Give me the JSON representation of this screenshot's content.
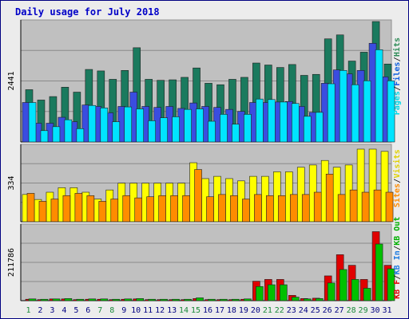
{
  "title": "Daily usage for July 2018",
  "colors": {
    "hits": "#1a7a5e",
    "files": "#3a4de0",
    "pages": "#00e4ff",
    "visits": "#ffff00",
    "sites": "#ff8c00",
    "kb_in": "#1e7ce0",
    "kb_f": "#e00000",
    "kb_out": "#00c000",
    "panel_bg": "#c0c0c0",
    "axis": "#000000"
  },
  "chart_data": [
    {
      "type": "bar",
      "title": "Daily usage for July 2018",
      "categories": [
        "1",
        "2",
        "3",
        "4",
        "5",
        "6",
        "7",
        "8",
        "9",
        "10",
        "11",
        "12",
        "13",
        "14",
        "15",
        "16",
        "17",
        "18",
        "19",
        "20",
        "21",
        "22",
        "23",
        "24",
        "25",
        "26",
        "27",
        "28",
        "29",
        "30",
        "31"
      ],
      "weekend_days": [
        "1",
        "7",
        "8",
        "14",
        "15",
        "21",
        "22",
        "28",
        "29"
      ],
      "ylabel": "2441",
      "ylim": [
        0,
        2441
      ],
      "legend": [
        "Pages",
        "Files",
        "Hits"
      ],
      "legend_separator": "/",
      "series": [
        {
          "name": "Hits",
          "values": [
            1060,
            850,
            920,
            1110,
            1010,
            1470,
            1440,
            1270,
            1450,
            1910,
            1270,
            1250,
            1260,
            1310,
            1500,
            1190,
            1160,
            1270,
            1310,
            1600,
            1560,
            1510,
            1570,
            1350,
            1370,
            2090,
            2170,
            1640,
            1820,
            2441,
            1580
          ]
        },
        {
          "name": "Files",
          "values": [
            800,
            380,
            380,
            500,
            410,
            750,
            720,
            590,
            720,
            1010,
            720,
            700,
            720,
            680,
            790,
            720,
            700,
            660,
            620,
            800,
            800,
            810,
            820,
            720,
            600,
            1190,
            1460,
            1380,
            1450,
            2000,
            1320
          ]
        },
        {
          "name": "Pages",
          "values": [
            800,
            230,
            310,
            450,
            270,
            740,
            690,
            410,
            710,
            670,
            430,
            490,
            510,
            660,
            670,
            420,
            560,
            360,
            560,
            870,
            860,
            810,
            780,
            520,
            600,
            1180,
            1450,
            1160,
            1240,
            1870,
            1240
          ]
        }
      ]
    },
    {
      "type": "bar",
      "categories": [
        "1",
        "2",
        "3",
        "4",
        "5",
        "6",
        "7",
        "8",
        "9",
        "10",
        "11",
        "12",
        "13",
        "14",
        "15",
        "16",
        "17",
        "18",
        "19",
        "20",
        "21",
        "22",
        "23",
        "24",
        "25",
        "26",
        "27",
        "28",
        "29",
        "30",
        "31"
      ],
      "ylabel": "334",
      "ylim": [
        0,
        334
      ],
      "legend": [
        "Sites",
        "Visits"
      ],
      "legend_separator": "/",
      "series": [
        {
          "name": "Visits",
          "values": [
            120,
            98,
            130,
            150,
            150,
            130,
            100,
            140,
            170,
            170,
            170,
            170,
            170,
            170,
            260,
            190,
            200,
            190,
            180,
            200,
            200,
            220,
            220,
            240,
            250,
            270,
            240,
            250,
            320,
            320,
            310
          ]
        },
        {
          "name": "Sites",
          "values": [
            125,
            90,
            100,
            115,
            125,
            115,
            90,
            100,
            115,
            105,
            110,
            115,
            115,
            115,
            230,
            110,
            120,
            115,
            100,
            120,
            115,
            115,
            120,
            120,
            130,
            210,
            120,
            140,
            130,
            140,
            130
          ]
        }
      ]
    },
    {
      "type": "bar",
      "categories": [
        "1",
        "2",
        "3",
        "4",
        "5",
        "6",
        "7",
        "8",
        "9",
        "10",
        "11",
        "12",
        "13",
        "14",
        "15",
        "16",
        "17",
        "18",
        "19",
        "20",
        "21",
        "22",
        "23",
        "24",
        "25",
        "26",
        "27",
        "28",
        "29",
        "30",
        "31"
      ],
      "ylabel": "211786",
      "ylim": [
        0,
        211786
      ],
      "legend": [
        "KB F",
        "KB In",
        "KB Out"
      ],
      "legend_separator": "/",
      "series": [
        {
          "name": "KB F",
          "values": [
            4000,
            3000,
            5000,
            5000,
            3000,
            4000,
            4000,
            3000,
            4000,
            5000,
            3000,
            3000,
            3000,
            3000,
            6000,
            3000,
            3000,
            3000,
            4000,
            55000,
            60000,
            60000,
            15000,
            6000,
            7000,
            70000,
            130000,
            100000,
            60000,
            195000,
            100000
          ]
        },
        {
          "name": "KB In",
          "values": [
            0,
            0,
            0,
            0,
            0,
            0,
            0,
            0,
            0,
            0,
            0,
            0,
            0,
            0,
            0,
            0,
            0,
            0,
            0,
            0,
            0,
            0,
            0,
            0,
            0,
            0,
            0,
            0,
            0,
            0,
            0
          ]
        },
        {
          "name": "KB Out",
          "values": [
            5000,
            4000,
            5000,
            6000,
            4000,
            5000,
            5000,
            4000,
            5000,
            6000,
            4000,
            4000,
            4000,
            4000,
            8000,
            4000,
            4000,
            4000,
            5000,
            40000,
            45000,
            45000,
            10000,
            5000,
            6000,
            50000,
            88000,
            60000,
            35000,
            160000,
            90000
          ]
        }
      ]
    }
  ]
}
